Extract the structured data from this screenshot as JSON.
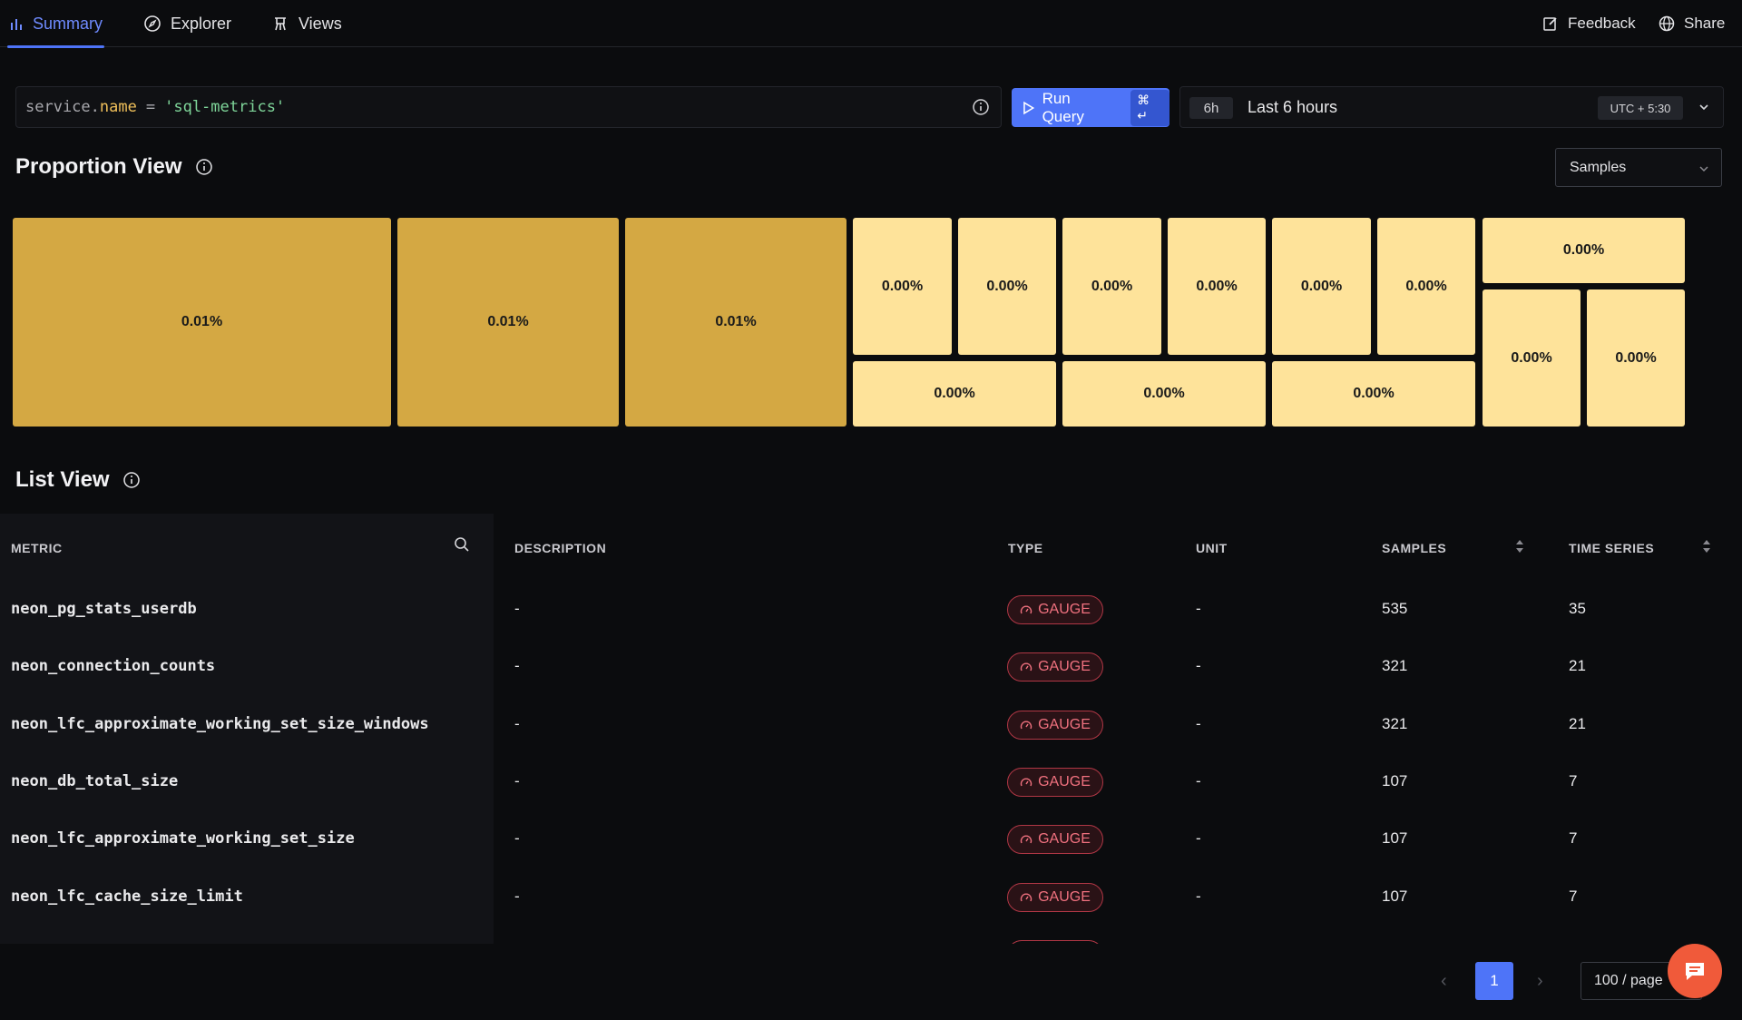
{
  "nav": {
    "tabs": [
      {
        "label": "Summary",
        "icon": "bar-chart-icon",
        "active": true
      },
      {
        "label": "Explorer",
        "icon": "compass-icon"
      },
      {
        "label": "Views",
        "icon": "views-icon"
      }
    ],
    "feedback_label": "Feedback",
    "share_label": "Share"
  },
  "query": {
    "key": "service",
    "dot": ".",
    "field": "name",
    "operator": "=",
    "value": "'sql-metrics'"
  },
  "run_query": {
    "label": "Run Query",
    "shortcut": "⌘ ↵"
  },
  "time_range": {
    "chip": "6h",
    "label": "Last 6 hours",
    "timezone": "UTC + 5:30"
  },
  "proportion_view": {
    "title": "Proportion View",
    "select_value": "Samples",
    "cells": [
      {
        "value": "0.01%",
        "shade": "dark"
      },
      {
        "value": "0.01%",
        "shade": "dark"
      },
      {
        "value": "0.01%",
        "shade": "dark"
      },
      {
        "value": "0.00%",
        "shade": "light"
      },
      {
        "value": "0.00%",
        "shade": "light"
      },
      {
        "value": "0.00%",
        "shade": "light"
      },
      {
        "value": "0.00%",
        "shade": "light"
      },
      {
        "value": "0.00%",
        "shade": "light"
      },
      {
        "value": "0.00%",
        "shade": "light"
      },
      {
        "value": "0.00%",
        "shade": "light"
      },
      {
        "value": "0.00%",
        "shade": "light"
      },
      {
        "value": "0.00%",
        "shade": "light"
      },
      {
        "value": "0.00%",
        "shade": "light"
      },
      {
        "value": "0.00%",
        "shade": "light"
      },
      {
        "value": "0.00%",
        "shade": "light"
      }
    ],
    "colors": {
      "dark": "#d4a843",
      "light": "#fee39a"
    }
  },
  "list_view": {
    "title": "List View",
    "columns": {
      "metric": "METRIC",
      "description": "DESCRIPTION",
      "type": "TYPE",
      "unit": "UNIT",
      "samples": "SAMPLES",
      "time_series": "TIME SERIES"
    },
    "rows": [
      {
        "metric": "neon_pg_stats_userdb",
        "description": "-",
        "type": "GAUGE",
        "unit": "-",
        "samples": "535",
        "time_series": "35"
      },
      {
        "metric": "neon_connection_counts",
        "description": "-",
        "type": "GAUGE",
        "unit": "-",
        "samples": "321",
        "time_series": "21"
      },
      {
        "metric": "neon_lfc_approximate_working_set_size_windows",
        "description": "-",
        "type": "GAUGE",
        "unit": "-",
        "samples": "321",
        "time_series": "21"
      },
      {
        "metric": "neon_db_total_size",
        "description": "-",
        "type": "GAUGE",
        "unit": "-",
        "samples": "107",
        "time_series": "7"
      },
      {
        "metric": "neon_lfc_approximate_working_set_size",
        "description": "-",
        "type": "GAUGE",
        "unit": "-",
        "samples": "107",
        "time_series": "7"
      },
      {
        "metric": "neon_lfc_cache_size_limit",
        "description": "-",
        "type": "GAUGE",
        "unit": "-",
        "samples": "107",
        "time_series": "7"
      }
    ]
  },
  "pagination": {
    "current_page": "1",
    "page_size": "100 / page"
  },
  "accent_color": "#4e74f8",
  "gauge_color": "#f0717f"
}
